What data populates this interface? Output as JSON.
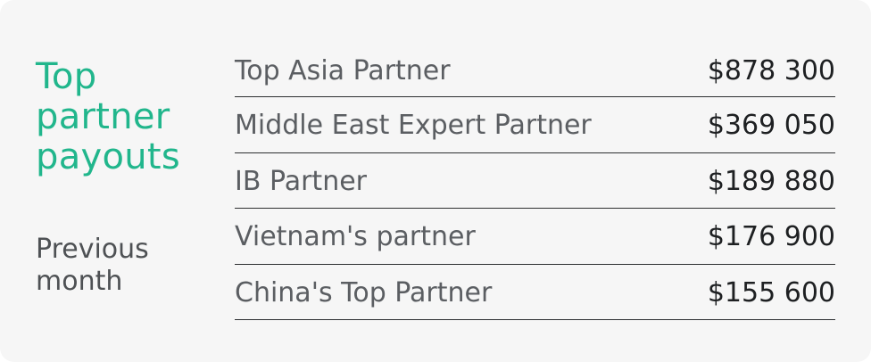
{
  "card": {
    "title": "Top partner payouts",
    "period": "Previous month"
  },
  "partners": [
    {
      "name": "Top Asia Partner",
      "amount": "$878 300"
    },
    {
      "name": "Middle East Expert Partner",
      "amount": "$369 050"
    },
    {
      "name": "IB Partner",
      "amount": "$189 880"
    },
    {
      "name": "Vietnam's partner",
      "amount": "$176 900"
    },
    {
      "name": "China's Top Partner",
      "amount": "$155 600"
    }
  ],
  "colors": {
    "accent": "#21b68c",
    "background": "#f6f6f6",
    "text_muted": "#5b5e62",
    "text_strong": "#1e2022"
  }
}
